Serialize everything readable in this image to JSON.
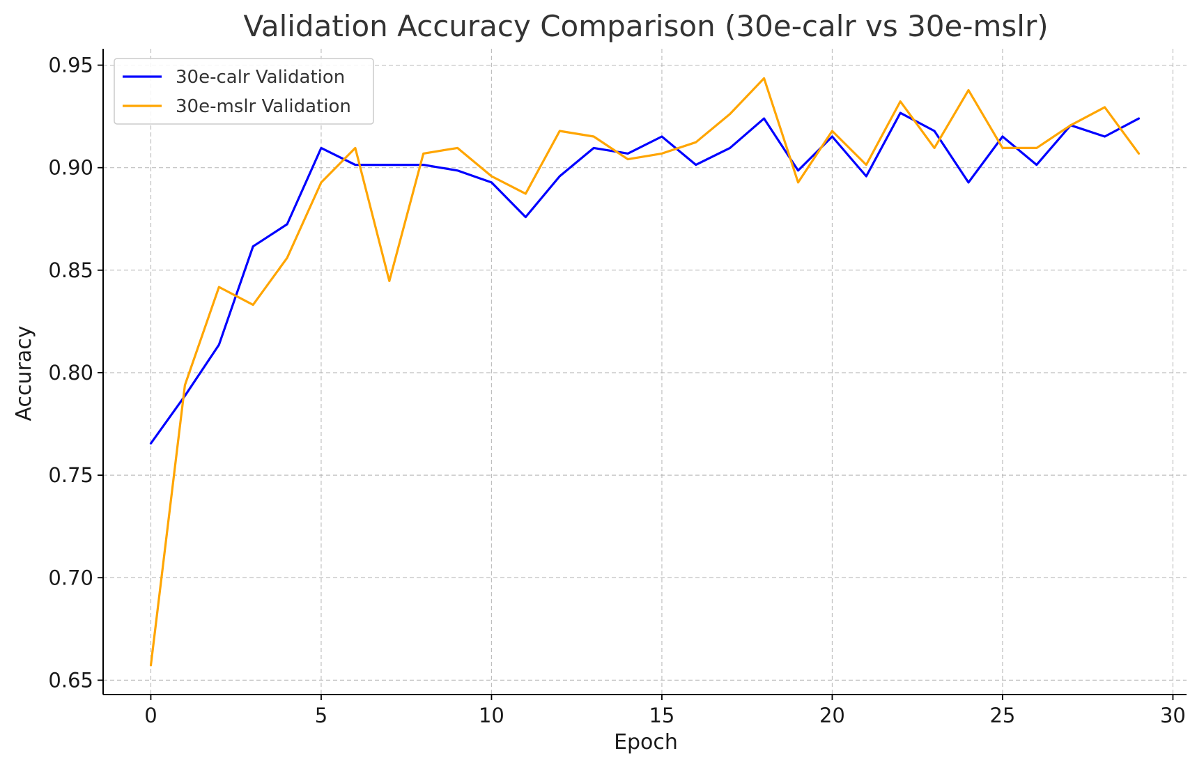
{
  "chart_data": {
    "type": "line",
    "title": "Validation Accuracy Comparison (30e-calr vs 30e-mslr)",
    "xlabel": "Epoch",
    "ylabel": "Accuracy",
    "xlim": [
      -1.4,
      30.4
    ],
    "ylim": [
      0.643,
      0.958
    ],
    "xticks": [
      0,
      5,
      10,
      15,
      20,
      25,
      30
    ],
    "xtick_labels": [
      "0",
      "5",
      "10",
      "15",
      "20",
      "25",
      "30"
    ],
    "yticks": [
      0.65,
      0.7,
      0.75,
      0.8,
      0.85,
      0.9,
      0.95
    ],
    "ytick_labels": [
      "0.65",
      "0.70",
      "0.75",
      "0.80",
      "0.85",
      "0.90",
      "0.95"
    ],
    "grid": true,
    "legend_position": "top-left",
    "x": [
      0,
      1,
      2,
      3,
      4,
      5,
      6,
      7,
      8,
      9,
      10,
      11,
      12,
      13,
      14,
      15,
      16,
      17,
      18,
      19,
      20,
      21,
      22,
      23,
      24,
      25,
      26,
      27,
      28,
      29
    ],
    "series": [
      {
        "name": "30e-calr Validation",
        "color": "#0000ff",
        "values": [
          0.7655,
          0.7887,
          0.8136,
          0.8616,
          0.8724,
          0.9096,
          0.9014,
          0.9014,
          0.9014,
          0.8986,
          0.8928,
          0.8759,
          0.8958,
          0.9096,
          0.9069,
          0.9152,
          0.9014,
          0.9096,
          0.924,
          0.8986,
          0.9152,
          0.8958,
          0.9267,
          0.9179,
          0.8928,
          0.9152,
          0.9014,
          0.9207,
          0.9152,
          0.924
        ]
      },
      {
        "name": "30e-mslr Validation",
        "color": "#ffa500",
        "values": [
          0.6573,
          0.7939,
          0.8418,
          0.8331,
          0.856,
          0.8928,
          0.9096,
          0.8447,
          0.9069,
          0.9096,
          0.8958,
          0.8873,
          0.9179,
          0.9152,
          0.9041,
          0.9069,
          0.9124,
          0.9262,
          0.9436,
          0.8928,
          0.9179,
          0.9014,
          0.9323,
          0.9096,
          0.9378,
          0.9096,
          0.9096,
          0.9207,
          0.9295,
          0.9069
        ]
      }
    ]
  }
}
